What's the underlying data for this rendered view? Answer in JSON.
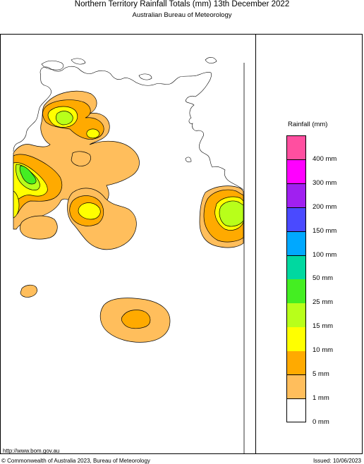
{
  "header": {
    "title": "Northern Territory Rainfall Totals (mm) 13th December 2022",
    "subtitle": "Australian Bureau of Meteorology"
  },
  "legend": {
    "title": "Rainfall (mm)",
    "classes": [
      {
        "label": "400 mm",
        "color": "#ff4fa0"
      },
      {
        "label": "300 mm",
        "color": "#ff00ff"
      },
      {
        "label": "200 mm",
        "color": "#a020f0"
      },
      {
        "label": "150 mm",
        "color": "#4a4aff"
      },
      {
        "label": "100 mm",
        "color": "#00a8ff"
      },
      {
        "label": "50 mm",
        "color": "#00d8a0"
      },
      {
        "label": "25 mm",
        "color": "#44ee22"
      },
      {
        "label": "15 mm",
        "color": "#b8ff1a"
      },
      {
        "label": "10 mm",
        "color": "#ffff00"
      },
      {
        "label": "5 mm",
        "color": "#ffaa00"
      },
      {
        "label": "1 mm",
        "color": "#ffbe5c"
      },
      {
        "label": "0 mm",
        "color": "#ffffff"
      }
    ]
  },
  "footer": {
    "url": "http://www.bom.gov.au",
    "copyright": "© Commonwealth of Australia 2023, Bureau of Meteorology",
    "issued": "Issued: 10/06/2023"
  }
}
